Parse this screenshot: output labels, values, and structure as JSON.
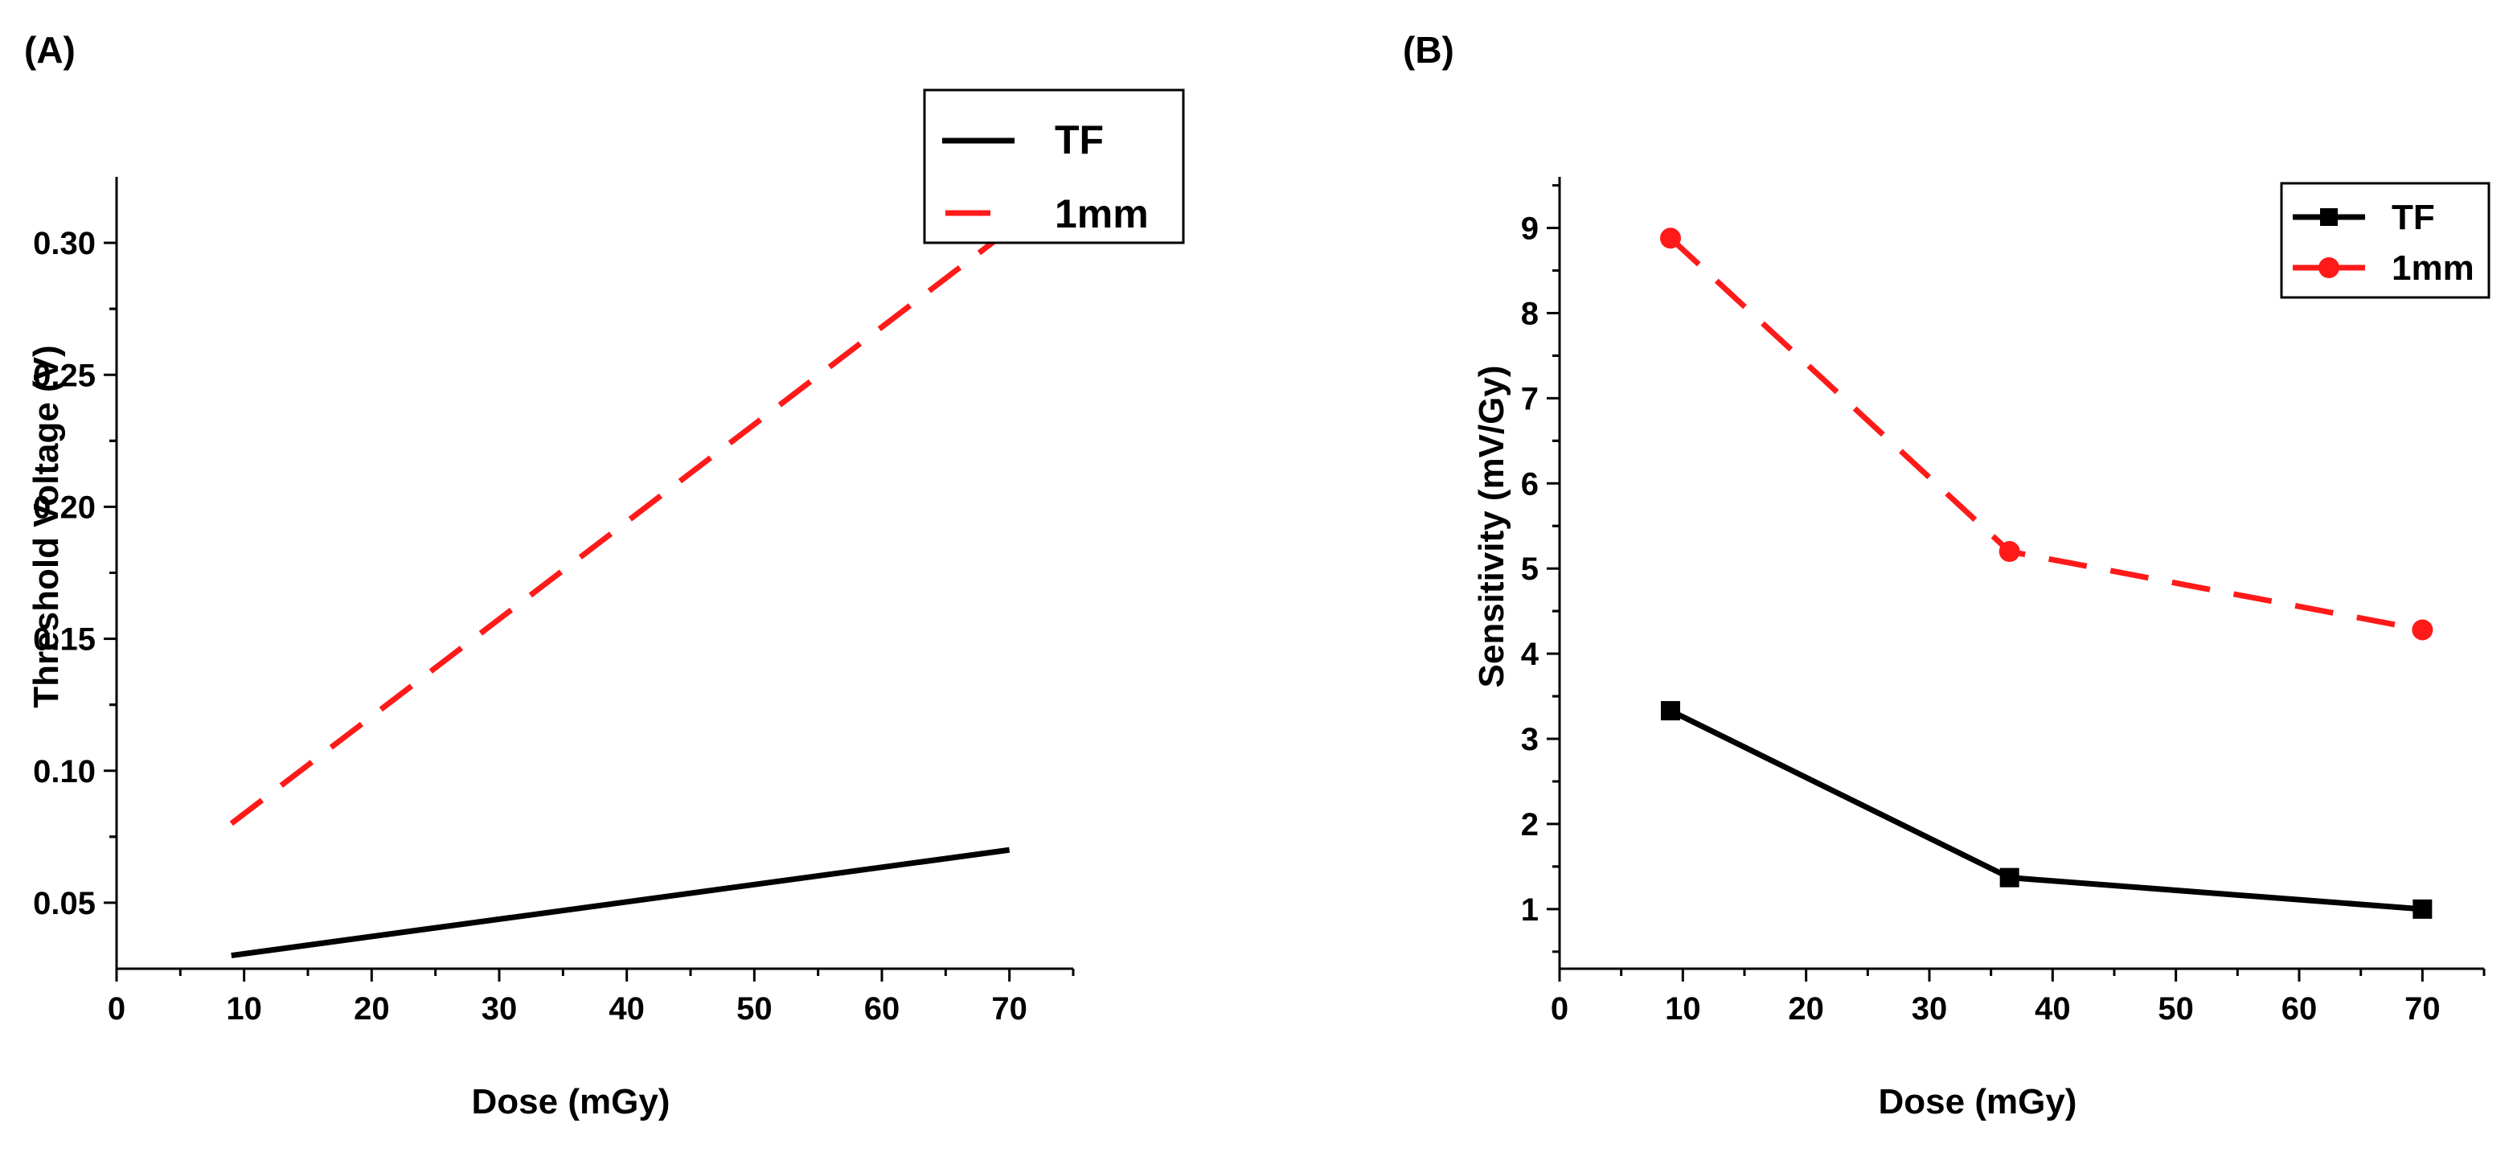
{
  "panels": {
    "a": {
      "label": "(A)"
    },
    "b": {
      "label": "(B)"
    }
  },
  "colors": {
    "tf": "#000000",
    "mm1": "#ff1a1a",
    "axis": "#000000"
  },
  "chart_data": [
    {
      "type": "line",
      "xlabel": "Dose (mGy)",
      "ylabel": "Threshold Voltage (V)",
      "xlim": [
        0,
        75
      ],
      "ylim": [
        0.025,
        0.325
      ],
      "xticks": [
        "0",
        "10",
        "20",
        "30",
        "40",
        "50",
        "60",
        "70"
      ],
      "yticks": [
        "0.05",
        "0.10",
        "0.15",
        "0.20",
        "0.25",
        "0.30"
      ],
      "legend_position": "top-right",
      "series": [
        {
          "name": "TF",
          "style": "solid",
          "marker": "none",
          "x": [
            9,
            70
          ],
          "y": [
            0.03,
            0.07
          ]
        },
        {
          "name": "1mm",
          "style": "dashed",
          "marker": "none",
          "x": [
            9,
            70
          ],
          "y": [
            0.08,
            0.305
          ]
        }
      ]
    },
    {
      "type": "line",
      "xlabel": "Dose (mGy)",
      "ylabel": "Sensitivity (mV/Gy)",
      "xlim": [
        0,
        75
      ],
      "ylim": [
        0.3,
        9.6
      ],
      "xticks": [
        "0",
        "10",
        "20",
        "30",
        "40",
        "50",
        "60",
        "70"
      ],
      "yticks": [
        "1",
        "2",
        "3",
        "4",
        "5",
        "6",
        "7",
        "8",
        "9"
      ],
      "legend_position": "top-right",
      "series": [
        {
          "name": "TF",
          "style": "solid",
          "marker": "square",
          "x": [
            9,
            36.5,
            70
          ],
          "y": [
            3.33,
            1.37,
            1.0
          ]
        },
        {
          "name": "1mm",
          "style": "dashed",
          "marker": "circle",
          "x": [
            9,
            36.5,
            70
          ],
          "y": [
            8.88,
            5.2,
            4.28
          ]
        }
      ]
    }
  ]
}
